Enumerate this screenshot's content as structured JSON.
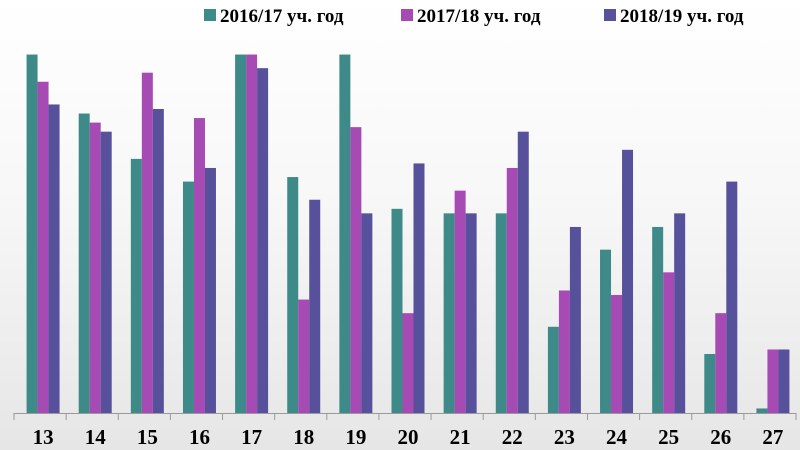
{
  "chart_data": {
    "type": "bar",
    "title": "",
    "xlabel": "",
    "ylabel": "",
    "ylim": [
      0,
      80
    ],
    "grid": false,
    "legend_position": "top-right",
    "categories": [
      "13",
      "14",
      "15",
      "16",
      "17",
      "18",
      "19",
      "20",
      "21",
      "22",
      "23",
      "24",
      "25",
      "26",
      "27"
    ],
    "series": [
      {
        "name": "2016/17 уч. год",
        "color": "#3D8A88",
        "values": [
          79,
          66,
          56,
          51,
          79,
          52,
          79,
          45,
          44,
          44,
          19,
          36,
          41,
          13,
          1
        ]
      },
      {
        "name": "2017/18 уч. год",
        "color": "#A64AB4",
        "values": [
          73,
          64,
          75,
          65,
          79,
          25,
          63,
          22,
          49,
          54,
          27,
          26,
          31,
          22,
          14
        ]
      },
      {
        "name": "2018/19 уч. год",
        "color": "#56519A",
        "values": [
          68,
          62,
          67,
          54,
          76,
          47,
          44,
          55,
          44,
          62,
          41,
          58,
          44,
          51,
          14
        ]
      }
    ]
  }
}
